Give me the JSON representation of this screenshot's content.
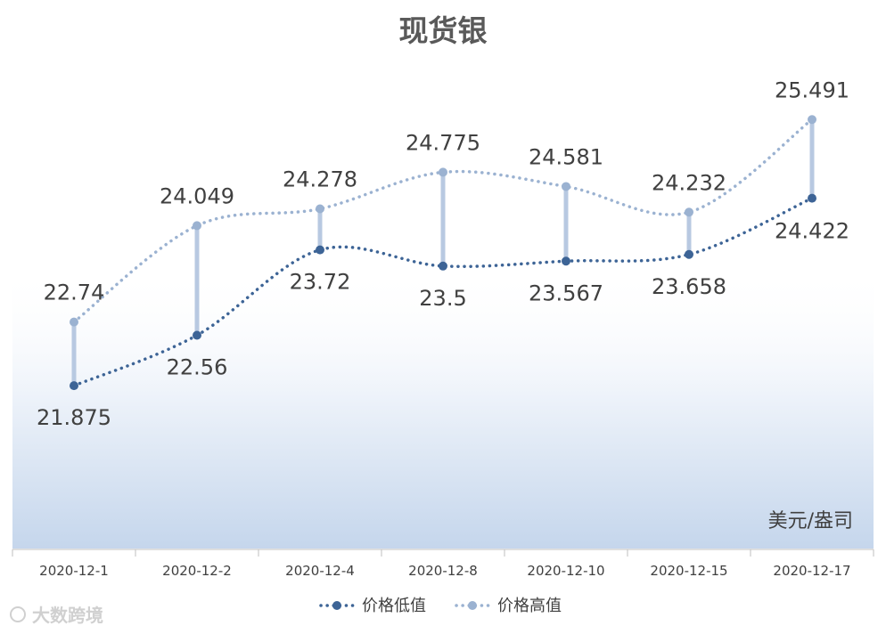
{
  "chart_data": {
    "type": "line",
    "title": "现货银",
    "unit_label": "美元/盎司",
    "categories": [
      "2020-12-1",
      "2020-12-2",
      "2020-12-4",
      "2020-12-8",
      "2020-12-10",
      "2020-12-15",
      "2020-12-17"
    ],
    "series": [
      {
        "name": "价格低值",
        "values": [
          21.875,
          22.56,
          23.72,
          23.5,
          23.567,
          23.658,
          24.422
        ],
        "color": "#3d6496"
      },
      {
        "name": "价格高值",
        "values": [
          22.74,
          24.049,
          24.278,
          24.775,
          24.581,
          24.232,
          25.491
        ],
        "color": "#9bb2d1"
      }
    ],
    "high_low_lines": true,
    "line_style": "dotted",
    "smoothed": true,
    "ylim": [
      19.65,
      26.45
    ],
    "grid": false,
    "legend": "bottom",
    "background": "gradient-blue"
  },
  "watermark": "大数跨境"
}
